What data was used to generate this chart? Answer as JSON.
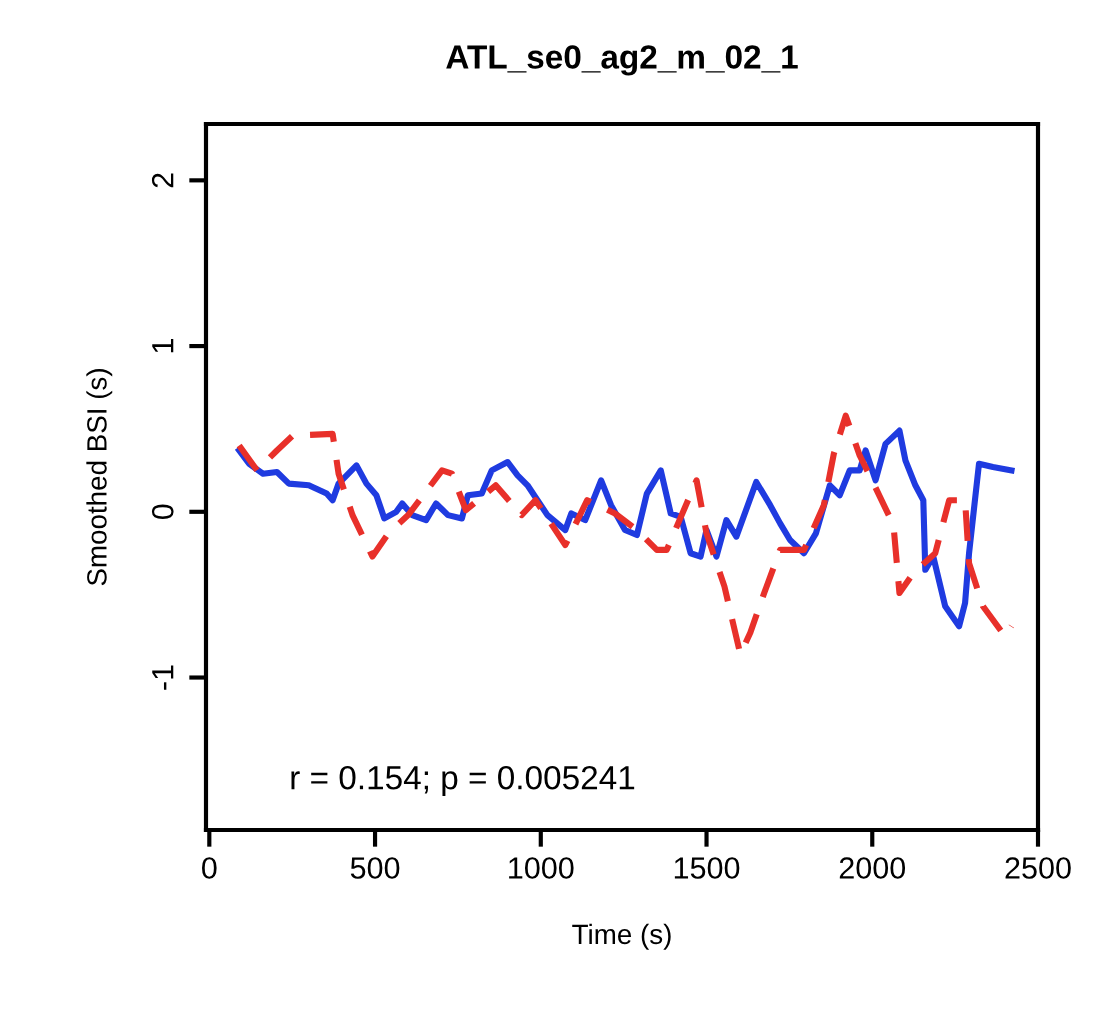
{
  "chart_data": {
    "type": "line",
    "title": "ATL_se0_ag2_m_02_1",
    "xlabel": "Time (s)",
    "ylabel": "Smoothed BSI (s)",
    "annotations": [
      "r = 0.154; p = 0.005241"
    ],
    "xlim": [
      -10,
      2500
    ],
    "ylim": [
      -1.92,
      2.34
    ],
    "xticks": [
      0,
      500,
      1000,
      1500,
      2000,
      2500
    ],
    "yticks": [
      -1,
      0,
      1,
      2
    ],
    "grid": false,
    "legend": false,
    "series": [
      {
        "color": "#1f3be0",
        "line_style": "solid",
        "x": [
          90,
          120,
          162,
          204,
          240,
          300,
          354,
          372,
          390,
          444,
          474,
          504,
          528,
          564,
          582,
          612,
          654,
          684,
          720,
          762,
          780,
          822,
          852,
          900,
          930,
          960,
          990,
          1020,
          1074,
          1092,
          1134,
          1182,
          1212,
          1254,
          1290,
          1320,
          1362,
          1392,
          1422,
          1452,
          1482,
          1500,
          1530,
          1560,
          1590,
          1650,
          1692,
          1722,
          1752,
          1794,
          1830,
          1872,
          1902,
          1932,
          1962,
          1980,
          2010,
          2040,
          2082,
          2100,
          2130,
          2154,
          2160,
          2184,
          2220,
          2262,
          2280,
          2292,
          2322,
          2364,
          2420
        ],
        "values": [
          0.37,
          0.29,
          0.23,
          0.24,
          0.17,
          0.16,
          0.11,
          0.07,
          0.17,
          0.28,
          0.17,
          0.1,
          -0.04,
          0,
          0.05,
          -0.02,
          -0.05,
          0.05,
          -0.02,
          -0.04,
          0.1,
          0.11,
          0.25,
          0.3,
          0.22,
          0.16,
          0.07,
          -0.02,
          -0.11,
          -0.01,
          -0.05,
          0.19,
          0.04,
          -0.11,
          -0.14,
          0.11,
          0.25,
          -0.01,
          -0.03,
          -0.25,
          -0.27,
          -0.11,
          -0.27,
          -0.05,
          -0.15,
          0.18,
          0.04,
          -0.07,
          -0.17,
          -0.25,
          -0.13,
          0.16,
          0.1,
          0.25,
          0.25,
          0.37,
          0.19,
          0.41,
          0.49,
          0.31,
          0.16,
          0.07,
          -0.35,
          -0.27,
          -0.57,
          -0.69,
          -0.55,
          -0.25,
          0.29,
          0.27,
          0.25
        ]
      },
      {
        "color": "#e8302a",
        "line_style": "dashed",
        "x": [
          90,
          144,
          204,
          252,
          372,
          390,
          432,
          492,
          540,
          600,
          702,
          732,
          774,
          864,
          942,
          984,
          1074,
          1140,
          1224,
          1290,
          1350,
          1380,
          1470,
          1500,
          1554,
          1602,
          1632,
          1674,
          1722,
          1794,
          1854,
          1884,
          1920,
          1962,
          2004,
          2064,
          2082,
          2124,
          2190,
          2232,
          2280,
          2292,
          2334,
          2400,
          2420
        ],
        "values": [
          0.4,
          0.25,
          0.37,
          0.46,
          0.47,
          0.23,
          -0.02,
          -0.27,
          -0.13,
          -0.02,
          0.25,
          0.23,
          0.01,
          0.16,
          -0.02,
          0.07,
          -0.2,
          0.07,
          -0.01,
          -0.11,
          -0.23,
          -0.23,
          0.19,
          -0.13,
          -0.45,
          -0.86,
          -0.73,
          -0.49,
          -0.23,
          -0.23,
          0.04,
          0.35,
          0.58,
          0.34,
          0.17,
          -0.08,
          -0.49,
          -0.37,
          -0.25,
          0.07,
          0.07,
          -0.31,
          -0.57,
          -0.75,
          -0.69
        ]
      }
    ]
  }
}
